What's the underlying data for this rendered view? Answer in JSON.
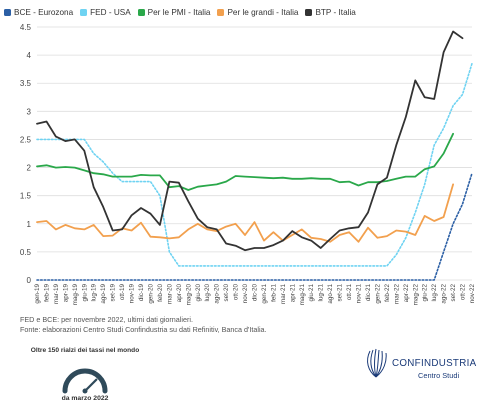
{
  "legend": [
    {
      "label": "BCE - Eurozona",
      "color": "#2b5fa5"
    },
    {
      "label": "FED - USA",
      "color": "#6fd3f2"
    },
    {
      "label": "Per le PMI - Italia",
      "color": "#2aa84a"
    },
    {
      "label": "Per le grandi - Italia",
      "color": "#f2a04e"
    },
    {
      "label": "BTP - Italia",
      "color": "#333333"
    }
  ],
  "chart_data": {
    "type": "line",
    "categories": [
      "gen-19",
      "feb-19",
      "mar-19",
      "apr-19",
      "mag-19",
      "giu-19",
      "lug-19",
      "ago-19",
      "set-19",
      "ott-19",
      "nov-19",
      "dic-19",
      "gen-20",
      "feb-20",
      "mar-20",
      "apr-20",
      "mag-20",
      "giu-20",
      "lug-20",
      "ago-20",
      "set-20",
      "ott-20",
      "nov-20",
      "dic-20",
      "gen-21",
      "feb-21",
      "mar-21",
      "apr-21",
      "mag-21",
      "giu-21",
      "lug-21",
      "ago-21",
      "set-21",
      "ott-21",
      "nov-21",
      "dic-21",
      "gen-22",
      "feb-22",
      "mar-22",
      "apr-22",
      "mag-22",
      "giu-22",
      "lug-22",
      "ago-22",
      "set-22",
      "ott-22",
      "nov-22"
    ],
    "ylim": [
      0,
      4.5
    ],
    "yticks": [
      "0",
      "0.5",
      "1",
      "1.5",
      "2",
      "2.5",
      "3",
      "3.5",
      "4",
      "4.5"
    ],
    "grid": true,
    "series": [
      {
        "name": "BCE - Eurozona",
        "color": "#2b5fa5",
        "dash": true,
        "values": [
          0,
          0,
          0,
          0,
          0,
          0,
          0,
          0,
          0,
          0,
          0,
          0,
          0,
          0,
          0,
          0,
          0,
          0,
          0,
          0,
          0,
          0,
          0,
          0,
          0,
          0,
          0,
          0,
          0,
          0,
          0,
          0,
          0,
          0,
          0,
          0,
          0,
          0,
          0,
          0,
          0,
          0,
          0,
          0.5,
          1.0,
          1.35,
          1.9
        ]
      },
      {
        "name": "FED - USA",
        "color": "#6fd3f2",
        "dash": true,
        "values": [
          2.5,
          2.5,
          2.5,
          2.5,
          2.5,
          2.5,
          2.25,
          2.1,
          1.9,
          1.75,
          1.75,
          1.75,
          1.75,
          1.5,
          0.5,
          0.25,
          0.25,
          0.25,
          0.25,
          0.25,
          0.25,
          0.25,
          0.25,
          0.25,
          0.25,
          0.25,
          0.25,
          0.25,
          0.25,
          0.25,
          0.25,
          0.25,
          0.25,
          0.25,
          0.25,
          0.25,
          0.25,
          0.25,
          0.45,
          0.75,
          1.2,
          1.7,
          2.4,
          2.7,
          3.1,
          3.3,
          3.85
        ]
      },
      {
        "name": "Per le PMI - Italia",
        "color": "#2aa84a",
        "dash": false,
        "values": [
          2.02,
          2.04,
          2.0,
          2.01,
          2.0,
          1.95,
          1.9,
          1.88,
          1.84,
          1.84,
          1.84,
          1.87,
          1.86,
          1.86,
          1.65,
          1.67,
          1.6,
          1.66,
          1.68,
          1.7,
          1.75,
          1.85,
          1.84,
          1.83,
          1.82,
          1.81,
          1.82,
          1.8,
          1.8,
          1.81,
          1.8,
          1.8,
          1.74,
          1.75,
          1.68,
          1.74,
          1.74,
          1.76,
          1.8,
          1.84,
          1.84,
          1.97,
          2.02,
          2.25,
          2.6,
          null,
          null
        ]
      },
      {
        "name": "Per le grandi - Italia",
        "color": "#f2a04e",
        "dash": false,
        "values": [
          1.03,
          1.05,
          0.9,
          0.98,
          0.92,
          0.9,
          0.98,
          0.78,
          0.79,
          0.92,
          0.88,
          1.02,
          0.77,
          0.76,
          0.74,
          0.76,
          0.9,
          1.0,
          0.9,
          0.87,
          0.95,
          1.0,
          0.8,
          1.03,
          0.7,
          0.85,
          0.7,
          0.8,
          0.9,
          0.75,
          0.73,
          0.68,
          0.8,
          0.85,
          0.68,
          0.93,
          0.75,
          0.78,
          0.88,
          0.86,
          0.8,
          1.14,
          1.05,
          1.12,
          1.7,
          null,
          null
        ]
      },
      {
        "name": "BTP - Italia",
        "color": "#333333",
        "dash": false,
        "values": [
          2.78,
          2.82,
          2.55,
          2.47,
          2.5,
          2.3,
          1.65,
          1.3,
          0.88,
          0.9,
          1.15,
          1.28,
          1.18,
          0.98,
          1.75,
          1.73,
          1.4,
          1.09,
          0.94,
          0.9,
          0.65,
          0.61,
          0.53,
          0.57,
          0.57,
          0.62,
          0.7,
          0.87,
          0.76,
          0.7,
          0.57,
          0.73,
          0.88,
          0.92,
          0.94,
          1.2,
          1.7,
          1.82,
          2.4,
          2.9,
          3.55,
          3.25,
          3.22,
          4.05,
          4.42,
          4.3,
          null
        ]
      }
    ]
  },
  "notes": [
    "FED e BCE: per novembre 2022, ultimi dati giornalieri.",
    "Fonte: elaborazioni Centro Studi Confindustria su dati Refinitiv, Banca d'Italia."
  ],
  "gauge": {
    "caption": "Oltre 150 rialzi dei tassi nel mondo",
    "date": "da marzo 2022",
    "level": 0.75
  },
  "brand": {
    "name": "CONFINDUSTRIA",
    "sub": "Centro Studi"
  }
}
